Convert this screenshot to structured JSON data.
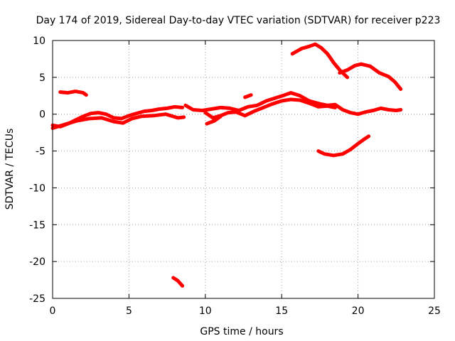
{
  "chart_data": {
    "type": "scatter",
    "title": "Day 174 of 2019, Sidereal Day-to-day VTEC variation (SDTVAR) for receiver p223",
    "xlabel": "GPS time / hours",
    "ylabel": "SDTVAR / TECUs",
    "xlim": [
      0,
      25
    ],
    "ylim": [
      -25,
      10
    ],
    "xticks": [
      0,
      5,
      10,
      15,
      20,
      25
    ],
    "yticks": [
      -25,
      -20,
      -15,
      -10,
      -5,
      0,
      5,
      10
    ],
    "xtick_labels": [
      "0",
      "5",
      "10",
      "15",
      "20",
      "25"
    ],
    "ytick_labels": [
      "-25",
      "-20",
      "-15",
      "-10",
      "-5",
      "0",
      "5",
      "10"
    ],
    "grid": true,
    "legend": "none",
    "color": "#ff0000",
    "series": [
      {
        "name": "track-main-1",
        "points": [
          [
            0,
            -1.5
          ],
          [
            0.5,
            -1.7
          ],
          [
            1,
            -1.3
          ],
          [
            1.5,
            -0.8
          ],
          [
            2,
            -0.3
          ],
          [
            2.5,
            0.1
          ],
          [
            3,
            0.2
          ],
          [
            3.5,
            0.0
          ],
          [
            4,
            -0.5
          ],
          [
            4.5,
            -0.6
          ],
          [
            5,
            -0.2
          ],
          [
            5.5,
            0.1
          ],
          [
            6,
            0.4
          ],
          [
            6.5,
            0.5
          ],
          [
            7,
            0.7
          ],
          [
            7.5,
            0.8
          ],
          [
            8,
            1.0
          ],
          [
            8.5,
            0.9
          ]
        ]
      },
      {
        "name": "track-main-1b",
        "points": [
          [
            0,
            -1.9
          ],
          [
            0.8,
            -1.4
          ],
          [
            1.6,
            -0.9
          ],
          [
            2.4,
            -0.6
          ],
          [
            3.2,
            -0.5
          ],
          [
            4,
            -1.0
          ],
          [
            4.6,
            -1.2
          ],
          [
            5.2,
            -0.6
          ],
          [
            5.8,
            -0.3
          ],
          [
            6.6,
            -0.2
          ],
          [
            7.4,
            0.0
          ],
          [
            8.2,
            -0.5
          ],
          [
            8.6,
            -0.4
          ]
        ]
      },
      {
        "name": "track-main-2",
        "points": [
          [
            8.7,
            1.2
          ],
          [
            9.2,
            0.6
          ],
          [
            9.8,
            0.5
          ],
          [
            10.4,
            0.7
          ],
          [
            11,
            0.9
          ],
          [
            11.6,
            0.8
          ],
          [
            12.2,
            0.5
          ],
          [
            12.8,
            1.0
          ],
          [
            13.4,
            1.2
          ],
          [
            14,
            1.8
          ],
          [
            14.6,
            2.2
          ],
          [
            15.2,
            2.6
          ],
          [
            15.6,
            2.9
          ],
          [
            16.2,
            2.5
          ],
          [
            16.8,
            1.8
          ],
          [
            17.5,
            1.4
          ],
          [
            18,
            1.2
          ],
          [
            18.5,
            1.3
          ],
          [
            19,
            0.6
          ],
          [
            19.5,
            0.2
          ],
          [
            20,
            0.0
          ],
          [
            20.5,
            0.3
          ],
          [
            21,
            0.5
          ],
          [
            21.5,
            0.8
          ],
          [
            22,
            0.6
          ],
          [
            22.5,
            0.5
          ],
          [
            22.8,
            0.6
          ]
        ]
      },
      {
        "name": "track-main-2b",
        "points": [
          [
            10,
            0.2
          ],
          [
            10.5,
            -0.5
          ],
          [
            11,
            -0.2
          ],
          [
            11.5,
            0.2
          ],
          [
            12,
            0.3
          ],
          [
            12.6,
            -0.2
          ],
          [
            13.2,
            0.4
          ],
          [
            13.8,
            0.9
          ],
          [
            14.4,
            1.4
          ],
          [
            15,
            1.8
          ],
          [
            15.6,
            2.0
          ],
          [
            16.2,
            1.9
          ],
          [
            16.8,
            1.5
          ],
          [
            17.4,
            1.0
          ],
          [
            18,
            1.1
          ],
          [
            18.5,
            0.9
          ]
        ]
      },
      {
        "name": "track-short-a",
        "points": [
          [
            10.1,
            -1.3
          ],
          [
            10.6,
            -0.9
          ],
          [
            11.0,
            -0.3
          ]
        ]
      },
      {
        "name": "track-short-b",
        "points": [
          [
            12.6,
            2.3
          ],
          [
            13.0,
            2.6
          ]
        ]
      },
      {
        "name": "track-upper-left",
        "points": [
          [
            0.5,
            3.0
          ],
          [
            1.0,
            2.9
          ],
          [
            1.5,
            3.1
          ],
          [
            2.0,
            2.9
          ],
          [
            2.2,
            2.6
          ]
        ]
      },
      {
        "name": "track-upper-right-1",
        "points": [
          [
            15.7,
            8.2
          ],
          [
            16.3,
            8.9
          ],
          [
            16.8,
            9.2
          ],
          [
            17.2,
            9.5
          ],
          [
            17.6,
            9.0
          ],
          [
            18.0,
            8.2
          ],
          [
            18.4,
            7.0
          ],
          [
            18.8,
            6.0
          ],
          [
            19.3,
            5.0
          ]
        ]
      },
      {
        "name": "track-upper-right-2",
        "points": [
          [
            18.8,
            5.6
          ],
          [
            19.3,
            6.0
          ],
          [
            19.8,
            6.6
          ],
          [
            20.2,
            6.8
          ],
          [
            20.8,
            6.5
          ],
          [
            21.4,
            5.6
          ],
          [
            22,
            5.1
          ],
          [
            22.4,
            4.4
          ],
          [
            22.8,
            3.4
          ]
        ]
      },
      {
        "name": "track-lower-right",
        "points": [
          [
            17.4,
            -5.0
          ],
          [
            17.8,
            -5.4
          ],
          [
            18.4,
            -5.6
          ],
          [
            19.0,
            -5.4
          ],
          [
            19.5,
            -4.8
          ],
          [
            20.0,
            -4.0
          ],
          [
            20.4,
            -3.4
          ],
          [
            20.7,
            -3.0
          ]
        ]
      },
      {
        "name": "track-outlier",
        "points": [
          [
            7.9,
            -22.2
          ],
          [
            8.2,
            -22.6
          ],
          [
            8.5,
            -23.3
          ]
        ]
      }
    ]
  }
}
